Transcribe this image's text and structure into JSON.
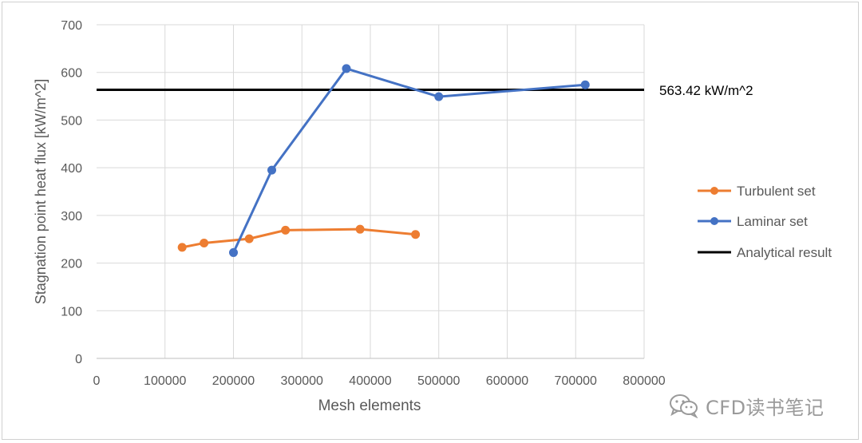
{
  "chart_data": {
    "type": "line",
    "xlabel": "Mesh elements",
    "ylabel": "Stagnation point heat flux [kW/m^2]",
    "xlim": [
      0,
      800000
    ],
    "ylim": [
      0,
      700
    ],
    "x_ticks": [
      0,
      100000,
      200000,
      300000,
      400000,
      500000,
      600000,
      700000,
      800000
    ],
    "y_ticks": [
      0,
      100,
      200,
      300,
      400,
      500,
      600,
      700
    ],
    "grid": true,
    "legend_position": "right",
    "series": [
      {
        "name": "Turbulent set",
        "color": "#ED7D31",
        "points": [
          [
            125000,
            233
          ],
          [
            157000,
            242
          ],
          [
            223000,
            251
          ],
          [
            276000,
            269
          ],
          [
            385000,
            271
          ],
          [
            466000,
            260
          ]
        ]
      },
      {
        "name": "Laminar set",
        "color": "#4472C4",
        "points": [
          [
            200000,
            222
          ],
          [
            256000,
            395
          ],
          [
            365000,
            608
          ],
          [
            500000,
            549
          ],
          [
            714000,
            574
          ]
        ]
      }
    ],
    "reference_line": {
      "name": "Analytical result",
      "color": "#000000",
      "y": 563.42,
      "label": "563.42 kW/m^2"
    }
  },
  "watermark": {
    "text": "CFD读书笔记",
    "icon": "wechat-icon"
  }
}
